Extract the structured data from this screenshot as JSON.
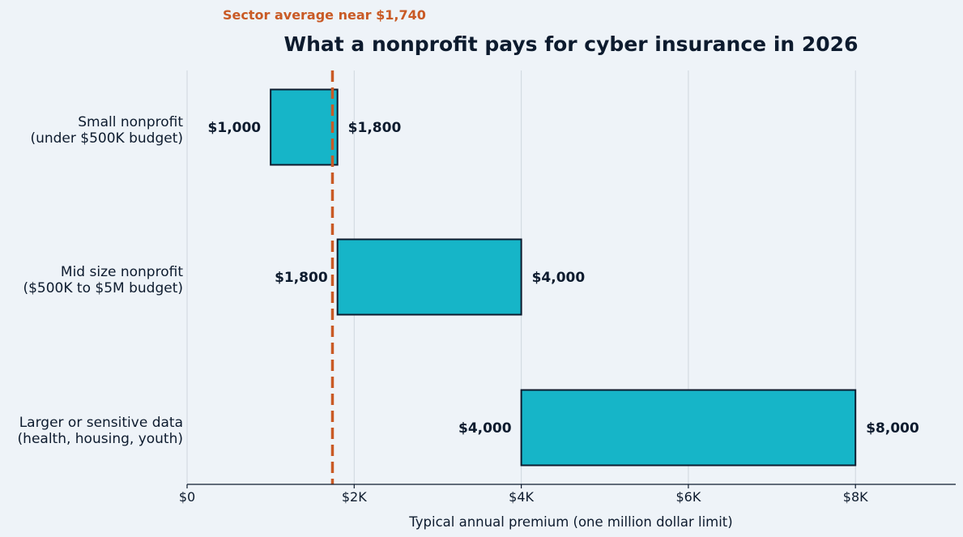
{
  "chart_data": {
    "type": "bar",
    "orientation": "horizontal",
    "style": "floating range bars",
    "title": "What a nonprofit pays for cyber insurance in 2026",
    "xlabel": "Typical annual premium (one million dollar limit)",
    "ylabel": "",
    "xlim": [
      0,
      9200
    ],
    "x_ticks": [
      0,
      2000,
      4000,
      6000,
      8000
    ],
    "x_tick_labels": [
      "$0",
      "$2K",
      "$4K",
      "$6K",
      "$8K"
    ],
    "grid": "vertical gridlines on",
    "legend": "none",
    "categories": [
      [
        "Small nonprofit",
        "(under $500K budget)"
      ],
      [
        "Mid size nonprofit",
        "($500K to $5M budget)"
      ],
      [
        "Larger or sensitive data",
        "(health, housing, youth)"
      ]
    ],
    "ranges": [
      {
        "low": 1000,
        "high": 1800,
        "low_label": "$1,000",
        "high_label": "$1,800"
      },
      {
        "low": 1800,
        "high": 4000,
        "low_label": "$1,800",
        "high_label": "$4,000"
      },
      {
        "low": 4000,
        "high": 8000,
        "low_label": "$4,000",
        "high_label": "$8,000"
      }
    ],
    "reference_line": {
      "value": 1740,
      "label": "Sector average near $1,740",
      "style": "dashed"
    },
    "colors": {
      "bar": "#16b5c8",
      "bar_edge": "#0d1b2e",
      "reference": "#c95a25",
      "text": "#0d1b2e",
      "background": "#eef3f8"
    }
  }
}
